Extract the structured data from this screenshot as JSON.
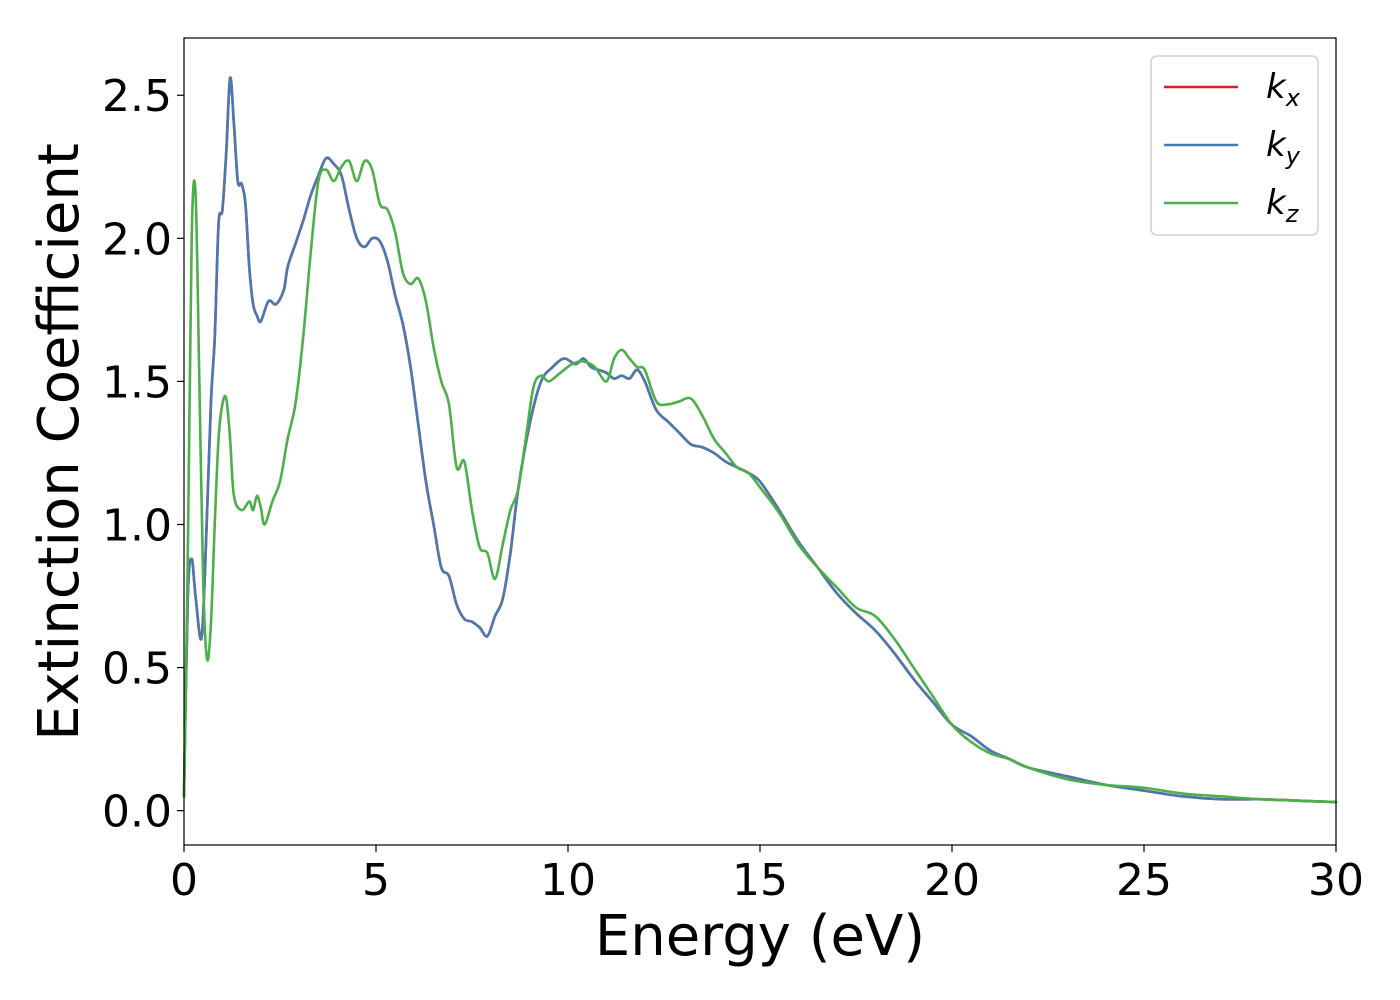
{
  "chart_data": {
    "type": "line",
    "xlabel": "Energy (eV)",
    "ylabel": "Extinction Coefficient",
    "xlim": [
      0,
      30
    ],
    "ylim": [
      -0.12,
      2.7
    ],
    "xticks": [
      0,
      5,
      10,
      15,
      20,
      25,
      30
    ],
    "xtick_labels": [
      "0",
      "5",
      "10",
      "15",
      "20",
      "25",
      "30"
    ],
    "yticks": [
      0.0,
      0.5,
      1.0,
      1.5,
      2.0,
      2.5
    ],
    "ytick_labels": [
      "0.0",
      "0.5",
      "1.0",
      "1.5",
      "2.0",
      "2.5"
    ],
    "grid": false,
    "legend_position": "top-right",
    "series": [
      {
        "name": "k",
        "sub": "x",
        "color": "#e41a1c",
        "x": [
          0,
          0.1,
          0.2,
          0.3,
          0.45,
          0.55,
          0.7,
          0.8,
          0.9,
          1.0,
          1.1,
          1.2,
          1.3,
          1.4,
          1.5,
          1.6,
          1.7,
          1.8,
          1.9,
          2.0,
          2.2,
          2.4,
          2.6,
          2.7,
          2.9,
          3.1,
          3.3,
          3.5,
          3.7,
          3.9,
          4.1,
          4.3,
          4.5,
          4.7,
          4.9,
          5.1,
          5.3,
          5.5,
          5.7,
          5.9,
          6.1,
          6.3,
          6.5,
          6.7,
          6.9,
          7.1,
          7.3,
          7.5,
          7.7,
          7.9,
          8.1,
          8.3,
          8.5,
          8.7,
          9.0,
          9.3,
          9.6,
          9.9,
          10.2,
          10.4,
          10.6,
          10.8,
          11.0,
          11.2,
          11.4,
          11.6,
          11.8,
          12.0,
          12.3,
          12.6,
          12.9,
          13.2,
          13.5,
          13.8,
          14.1,
          14.4,
          14.7,
          15.0,
          15.5,
          16.0,
          16.5,
          17.0,
          17.5,
          18.0,
          18.5,
          19.0,
          19.5,
          20.0,
          20.5,
          21.0,
          21.5,
          22.0,
          23.0,
          24.0,
          25.0,
          26.0,
          27.0,
          28.0,
          29.0,
          30.0
        ],
        "y": [
          0.05,
          0.75,
          0.88,
          0.75,
          0.6,
          0.85,
          1.42,
          1.65,
          2.05,
          2.1,
          2.3,
          2.56,
          2.4,
          2.2,
          2.19,
          2.12,
          1.9,
          1.77,
          1.73,
          1.71,
          1.78,
          1.77,
          1.82,
          1.9,
          1.98,
          2.06,
          2.15,
          2.22,
          2.28,
          2.26,
          2.22,
          2.1,
          2.0,
          1.97,
          2.0,
          1.99,
          1.92,
          1.8,
          1.7,
          1.55,
          1.35,
          1.15,
          1.0,
          0.85,
          0.82,
          0.72,
          0.67,
          0.66,
          0.64,
          0.61,
          0.68,
          0.74,
          0.9,
          1.12,
          1.35,
          1.5,
          1.55,
          1.58,
          1.56,
          1.58,
          1.55,
          1.54,
          1.53,
          1.51,
          1.52,
          1.51,
          1.54,
          1.5,
          1.4,
          1.36,
          1.32,
          1.28,
          1.27,
          1.25,
          1.22,
          1.2,
          1.18,
          1.15,
          1.05,
          0.94,
          0.85,
          0.76,
          0.69,
          0.63,
          0.55,
          0.46,
          0.38,
          0.3,
          0.26,
          0.21,
          0.18,
          0.15,
          0.12,
          0.09,
          0.07,
          0.05,
          0.04,
          0.04,
          0.035,
          0.03
        ]
      },
      {
        "name": "k",
        "sub": "y",
        "color": "#4a79b0",
        "x": [
          0,
          0.1,
          0.2,
          0.3,
          0.45,
          0.55,
          0.7,
          0.8,
          0.9,
          1.0,
          1.1,
          1.2,
          1.3,
          1.4,
          1.5,
          1.6,
          1.7,
          1.8,
          1.9,
          2.0,
          2.2,
          2.4,
          2.6,
          2.7,
          2.9,
          3.1,
          3.3,
          3.5,
          3.7,
          3.9,
          4.1,
          4.3,
          4.5,
          4.7,
          4.9,
          5.1,
          5.3,
          5.5,
          5.7,
          5.9,
          6.1,
          6.3,
          6.5,
          6.7,
          6.9,
          7.1,
          7.3,
          7.5,
          7.7,
          7.9,
          8.1,
          8.3,
          8.5,
          8.7,
          9.0,
          9.3,
          9.6,
          9.9,
          10.2,
          10.4,
          10.6,
          10.8,
          11.0,
          11.2,
          11.4,
          11.6,
          11.8,
          12.0,
          12.3,
          12.6,
          12.9,
          13.2,
          13.5,
          13.8,
          14.1,
          14.4,
          14.7,
          15.0,
          15.5,
          16.0,
          16.5,
          17.0,
          17.5,
          18.0,
          18.5,
          19.0,
          19.5,
          20.0,
          20.5,
          21.0,
          21.5,
          22.0,
          23.0,
          24.0,
          25.0,
          26.0,
          27.0,
          28.0,
          29.0,
          30.0
        ],
        "y": [
          0.05,
          0.75,
          0.88,
          0.75,
          0.6,
          0.85,
          1.42,
          1.65,
          2.05,
          2.1,
          2.3,
          2.56,
          2.4,
          2.2,
          2.19,
          2.12,
          1.9,
          1.77,
          1.73,
          1.71,
          1.78,
          1.77,
          1.82,
          1.9,
          1.98,
          2.06,
          2.15,
          2.22,
          2.28,
          2.26,
          2.22,
          2.1,
          2.0,
          1.97,
          2.0,
          1.99,
          1.92,
          1.8,
          1.7,
          1.55,
          1.35,
          1.15,
          1.0,
          0.85,
          0.82,
          0.72,
          0.67,
          0.66,
          0.64,
          0.61,
          0.68,
          0.74,
          0.9,
          1.12,
          1.35,
          1.5,
          1.55,
          1.58,
          1.56,
          1.58,
          1.55,
          1.54,
          1.53,
          1.51,
          1.52,
          1.51,
          1.54,
          1.5,
          1.4,
          1.36,
          1.32,
          1.28,
          1.27,
          1.25,
          1.22,
          1.2,
          1.18,
          1.15,
          1.05,
          0.94,
          0.85,
          0.76,
          0.69,
          0.63,
          0.55,
          0.46,
          0.38,
          0.3,
          0.26,
          0.21,
          0.18,
          0.15,
          0.12,
          0.09,
          0.07,
          0.05,
          0.04,
          0.04,
          0.035,
          0.03
        ]
      },
      {
        "name": "k",
        "sub": "z",
        "color": "#4daf4a",
        "x": [
          0,
          0.1,
          0.2,
          0.3,
          0.4,
          0.5,
          0.6,
          0.7,
          0.8,
          0.9,
          1.0,
          1.1,
          1.2,
          1.3,
          1.5,
          1.7,
          1.8,
          1.9,
          2.0,
          2.1,
          2.3,
          2.5,
          2.7,
          2.9,
          3.1,
          3.3,
          3.5,
          3.7,
          3.9,
          4.1,
          4.3,
          4.5,
          4.7,
          4.9,
          5.1,
          5.3,
          5.5,
          5.7,
          5.9,
          6.1,
          6.3,
          6.5,
          6.7,
          6.9,
          7.1,
          7.3,
          7.5,
          7.7,
          7.9,
          8.1,
          8.3,
          8.5,
          8.7,
          8.9,
          9.1,
          9.3,
          9.5,
          9.8,
          10.1,
          10.4,
          10.7,
          11.0,
          11.2,
          11.4,
          11.6,
          11.8,
          12.0,
          12.3,
          12.6,
          12.9,
          13.2,
          13.5,
          13.8,
          14.1,
          14.4,
          14.7,
          15.0,
          15.5,
          16.0,
          16.5,
          17.0,
          17.5,
          18.0,
          18.5,
          19.0,
          19.5,
          20.0,
          20.5,
          21.0,
          21.5,
          22.0,
          23.0,
          24.0,
          25.0,
          26.0,
          27.0,
          28.0,
          29.0,
          30.0
        ],
        "y": [
          0.05,
          0.9,
          2.0,
          2.16,
          1.5,
          0.8,
          0.53,
          0.65,
          1.0,
          1.3,
          1.42,
          1.44,
          1.3,
          1.1,
          1.05,
          1.08,
          1.05,
          1.1,
          1.06,
          1.0,
          1.08,
          1.15,
          1.3,
          1.42,
          1.65,
          1.95,
          2.2,
          2.24,
          2.2,
          2.25,
          2.27,
          2.2,
          2.27,
          2.24,
          2.12,
          2.1,
          2.02,
          1.88,
          1.84,
          1.86,
          1.78,
          1.62,
          1.5,
          1.42,
          1.2,
          1.22,
          1.05,
          0.92,
          0.9,
          0.81,
          0.93,
          1.05,
          1.12,
          1.3,
          1.48,
          1.52,
          1.5,
          1.53,
          1.56,
          1.57,
          1.55,
          1.5,
          1.58,
          1.61,
          1.58,
          1.55,
          1.54,
          1.43,
          1.42,
          1.43,
          1.44,
          1.38,
          1.3,
          1.25,
          1.2,
          1.18,
          1.13,
          1.04,
          0.93,
          0.85,
          0.78,
          0.71,
          0.68,
          0.6,
          0.5,
          0.4,
          0.3,
          0.24,
          0.2,
          0.18,
          0.15,
          0.11,
          0.09,
          0.08,
          0.06,
          0.05,
          0.04,
          0.035,
          0.03
        ]
      }
    ]
  }
}
